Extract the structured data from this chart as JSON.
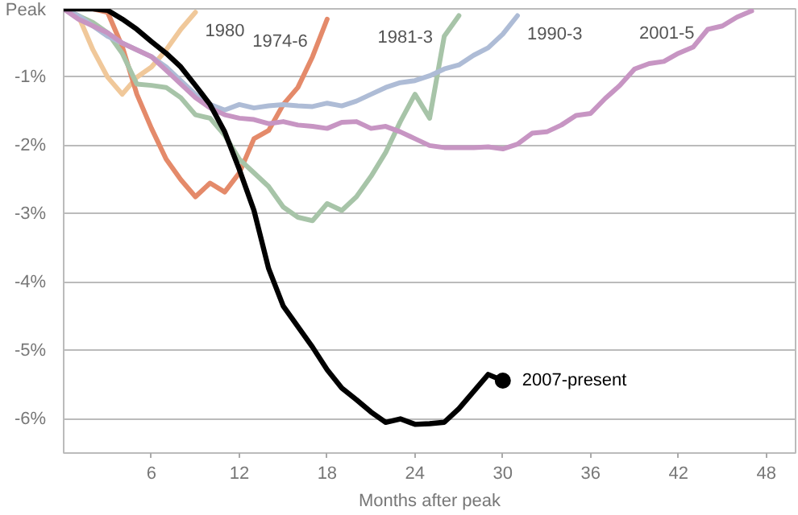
{
  "chart_data": {
    "type": "line",
    "xlabel": "Months after peak",
    "xlim": [
      0,
      50
    ],
    "ylim": [
      -6.5,
      0
    ],
    "xticks": [
      6,
      12,
      18,
      24,
      30,
      36,
      42,
      48
    ],
    "yticks": [
      {
        "value": 0,
        "label": "Peak"
      },
      {
        "value": -1,
        "label": "-1%"
      },
      {
        "value": -2,
        "label": "-2%"
      },
      {
        "value": -3,
        "label": "-3%"
      },
      {
        "value": -4,
        "label": "-4%"
      },
      {
        "value": -5,
        "label": "-5%"
      },
      {
        "value": -6,
        "label": "-6%"
      }
    ],
    "grid": "y",
    "series": [
      {
        "name": "1980",
        "color": "#f0c89a",
        "x": [
          0,
          1,
          2,
          3,
          4,
          5,
          6,
          7,
          8,
          9
        ],
        "values": [
          0,
          -0.1,
          -0.6,
          -1.0,
          -1.25,
          -1.0,
          -0.85,
          -0.6,
          -0.3,
          -0.05
        ]
      },
      {
        "name": "1974-6",
        "color": "#e48a6a",
        "x": [
          0,
          1,
          2,
          3,
          4,
          5,
          6,
          7,
          8,
          9,
          10,
          11,
          12,
          13,
          14,
          15,
          16,
          17,
          18
        ],
        "values": [
          0,
          0,
          0,
          -0.05,
          -0.55,
          -1.25,
          -1.75,
          -2.2,
          -2.5,
          -2.75,
          -2.55,
          -2.68,
          -2.4,
          -1.9,
          -1.78,
          -1.4,
          -1.15,
          -0.7,
          -0.15
        ]
      },
      {
        "name": "1981-3",
        "color": "#a7c4a8",
        "x": [
          0,
          1,
          2,
          3,
          4,
          5,
          6,
          7,
          8,
          9,
          10,
          11,
          12,
          13,
          14,
          15,
          16,
          17,
          18,
          19,
          20,
          21,
          22,
          23,
          24,
          25,
          26,
          27
        ],
        "values": [
          0,
          -0.1,
          -0.2,
          -0.35,
          -0.65,
          -1.1,
          -1.12,
          -1.15,
          -1.3,
          -1.55,
          -1.6,
          -1.85,
          -2.2,
          -2.4,
          -2.6,
          -2.9,
          -3.05,
          -3.1,
          -2.85,
          -2.95,
          -2.75,
          -2.45,
          -2.1,
          -1.65,
          -1.25,
          -1.6,
          -0.4,
          -0.1
        ]
      },
      {
        "name": "1990-3",
        "color": "#aebcd6",
        "x": [
          0,
          1,
          2,
          3,
          4,
          5,
          6,
          7,
          8,
          9,
          10,
          11,
          12,
          13,
          14,
          15,
          16,
          17,
          18,
          19,
          20,
          21,
          22,
          23,
          24,
          25,
          26,
          27,
          28,
          29,
          30,
          31
        ],
        "values": [
          0,
          -0.1,
          -0.25,
          -0.4,
          -0.5,
          -0.6,
          -0.7,
          -0.85,
          -1.05,
          -1.25,
          -1.4,
          -1.48,
          -1.4,
          -1.45,
          -1.42,
          -1.4,
          -1.42,
          -1.43,
          -1.38,
          -1.42,
          -1.35,
          -1.25,
          -1.15,
          -1.08,
          -1.05,
          -0.98,
          -0.88,
          -0.82,
          -0.68,
          -0.57,
          -0.37,
          -0.1
        ]
      },
      {
        "name": "2001-5",
        "color": "#c795c3",
        "x": [
          0,
          1,
          2,
          3,
          4,
          5,
          6,
          7,
          8,
          9,
          10,
          11,
          12,
          13,
          14,
          15,
          16,
          17,
          18,
          19,
          20,
          21,
          22,
          23,
          24,
          25,
          26,
          27,
          28,
          29,
          30,
          31,
          32,
          33,
          34,
          35,
          36,
          37,
          38,
          39,
          40,
          41,
          42,
          43,
          44,
          45,
          46,
          47
        ],
        "values": [
          0,
          -0.15,
          -0.25,
          -0.35,
          -0.5,
          -0.6,
          -0.7,
          -0.9,
          -1.1,
          -1.3,
          -1.45,
          -1.55,
          -1.6,
          -1.62,
          -1.68,
          -1.65,
          -1.7,
          -1.72,
          -1.75,
          -1.66,
          -1.65,
          -1.75,
          -1.72,
          -1.8,
          -1.9,
          -2.0,
          -2.03,
          -2.03,
          -2.03,
          -2.02,
          -2.05,
          -1.98,
          -1.82,
          -1.8,
          -1.7,
          -1.56,
          -1.53,
          -1.31,
          -1.12,
          -0.88,
          -0.8,
          -0.77,
          -0.65,
          -0.56,
          -0.3,
          -0.25,
          -0.12,
          -0.03
        ]
      },
      {
        "type": "scatter",
        "color": "#000000",
        "marker": "circle",
        "x": [
          30
        ],
        "values": [
          -5.44
        ]
      },
      {
        "name": "2007-present",
        "color": "#000000",
        "x": [
          0,
          1,
          2,
          3,
          4,
          5,
          6,
          7,
          8,
          9,
          10,
          11,
          12,
          13,
          14,
          15,
          16,
          17,
          18,
          19,
          20,
          21,
          22,
          23,
          24,
          25,
          26,
          27,
          28,
          29,
          30
        ],
        "values": [
          0,
          0,
          0,
          -0.02,
          -0.15,
          -0.3,
          -0.48,
          -0.65,
          -0.85,
          -1.12,
          -1.4,
          -1.8,
          -2.35,
          -2.95,
          -3.8,
          -4.35,
          -4.65,
          -4.95,
          -5.28,
          -5.55,
          -5.72,
          -5.9,
          -6.05,
          -6.0,
          -6.08,
          -6.07,
          -6.05,
          -5.85,
          -5.6,
          -5.35,
          -5.44
        ]
      }
    ]
  }
}
